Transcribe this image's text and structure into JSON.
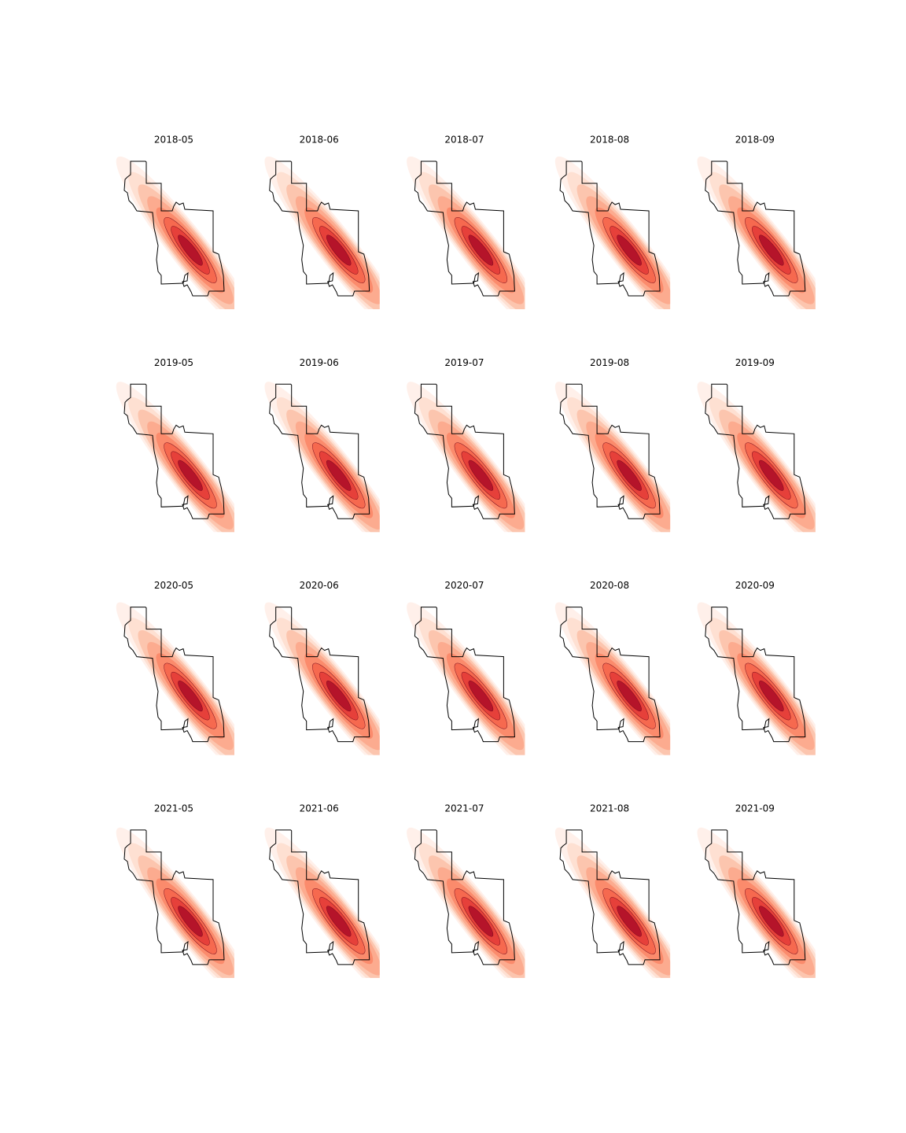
{
  "rows": [
    [
      "2018-05",
      "2018-06",
      "2018-07",
      "2018-08",
      "2018-09"
    ],
    [
      "2019-05",
      "2019-06",
      "2019-07",
      "2019-08",
      "2019-09"
    ],
    [
      "2020-05",
      "2020-06",
      "2020-07",
      "2020-08",
      "2020-09"
    ],
    [
      "2021-05",
      "2021-06",
      "2021-07",
      "2021-08",
      "2021-09"
    ]
  ]
}
